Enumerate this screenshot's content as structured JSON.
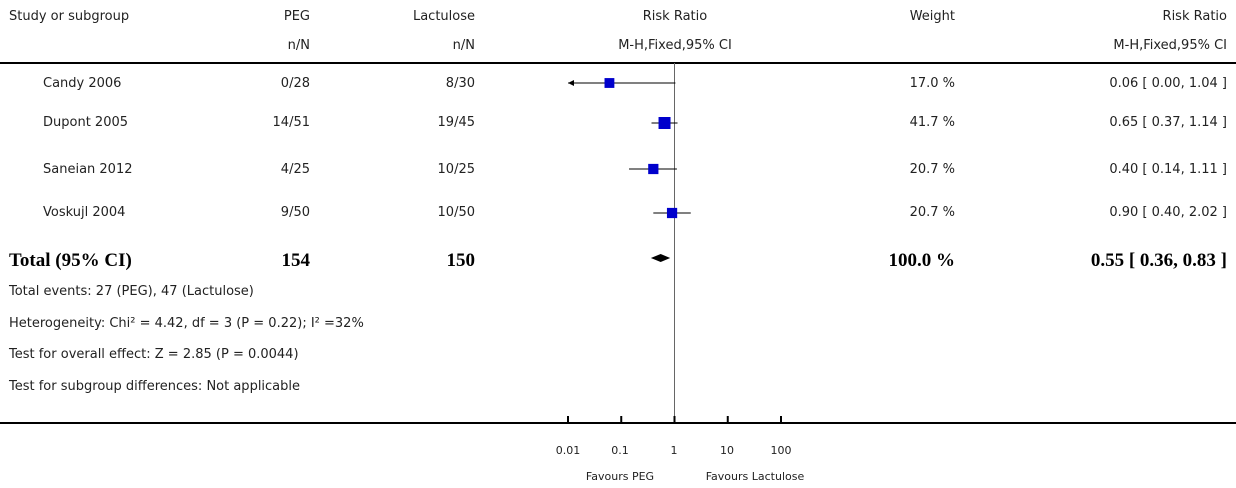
{
  "header": {
    "study": "Study or subgroup",
    "group1": "PEG",
    "group2": "Lactulose",
    "effect": "Risk Ratio",
    "weight": "Weight",
    "ratio": "Risk Ratio",
    "group1_sub": "n/N",
    "group2_sub": "n/N",
    "effect_sub": "M-H,Fixed,95% CI",
    "ratio_sub": "M-H,Fixed,95% CI"
  },
  "studies": [
    {
      "name": "Candy 2006",
      "g1": "0/28",
      "g2": "8/30",
      "weight": "17.0 %",
      "ci": "0.06 [ 0.00, 1.04 ]"
    },
    {
      "name": "Dupont 2005",
      "g1": "14/51",
      "g2": "19/45",
      "weight": "41.7 %",
      "ci": "0.65 [ 0.37, 1.14 ]"
    },
    {
      "name": "Saneian 2012",
      "g1": "4/25",
      "g2": "10/25",
      "weight": "20.7 %",
      "ci": "0.40 [ 0.14, 1.11 ]"
    },
    {
      "name": "Voskujl 2004",
      "g1": "9/50",
      "g2": "10/50",
      "weight": "20.7 %",
      "ci": "0.90 [ 0.40, 2.02 ]"
    }
  ],
  "total": {
    "label": "Total (95% CI)",
    "g1": "154",
    "g2": "150",
    "weight": "100.0 %",
    "ci": "0.55 [ 0.36, 0.83 ]"
  },
  "footnotes": {
    "events": "Total events: 27 (PEG), 47 (Lactulose)",
    "heterogeneity": "Heterogeneity: Chi² = 4.42, df = 3 (P = 0.22); I² =32%",
    "overall": "Test for overall effect: Z = 2.85 (P = 0.0044)",
    "subgroup": "Test for subgroup differences: Not applicable"
  },
  "axis": {
    "ticks": [
      "0.01",
      "0.1",
      "1",
      "10",
      "100"
    ],
    "favours_left": "Favours PEG",
    "favours_right": "Favours Lactulose"
  },
  "chart_data": {
    "type": "forest",
    "scale": "log",
    "xlim": [
      0.01,
      100
    ],
    "tick_values": [
      0.01,
      0.1,
      1,
      10,
      100
    ],
    "null_line": 1,
    "colors": {
      "marker": "#0000cc",
      "lines": "#000000"
    },
    "points": [
      {
        "study": "Candy 2006",
        "estimate": 0.06,
        "lower": 0.0,
        "upper": 1.04,
        "weight": 17.0
      },
      {
        "study": "Dupont 2005",
        "estimate": 0.65,
        "lower": 0.37,
        "upper": 1.14,
        "weight": 41.7
      },
      {
        "study": "Saneian 2012",
        "estimate": 0.4,
        "lower": 0.14,
        "upper": 1.11,
        "weight": 20.7
      },
      {
        "study": "Voskujl 2004",
        "estimate": 0.9,
        "lower": 0.4,
        "upper": 2.02,
        "weight": 20.7
      }
    ],
    "pooled": {
      "estimate": 0.55,
      "lower": 0.36,
      "upper": 0.83
    }
  }
}
